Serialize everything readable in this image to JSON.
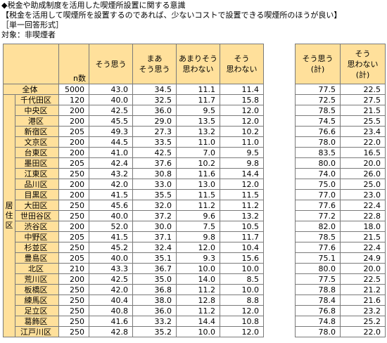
{
  "titles": {
    "line1": "◆税金や助成制度を活用した喫煙所設置に関する意識",
    "line2": "【税金を活用して喫煙所を設置するのであれば、少ないコストで設置できる喫煙所のほうが良い】",
    "line3": "［単一回答形式］",
    "line4": "対象：非喫煙者"
  },
  "chart_data": {
    "type": "table",
    "headers": {
      "n": "n数",
      "c1": "そう思う",
      "c2": "まあ\nそう思う",
      "c3": "あまりそう\n思わない",
      "c4": "そう\n思わない",
      "t1": "そう思う\n(計)",
      "t2": "そう\n思わない\n(計)"
    },
    "side_label": "居住区",
    "total": {
      "label": "全体",
      "n": "5000",
      "v": [
        "43.0",
        "34.5",
        "11.1",
        "11.4"
      ],
      "t": [
        "77.5",
        "22.5"
      ]
    },
    "rows": [
      {
        "label": "千代田区",
        "n": "120",
        "v": [
          "40.0",
          "32.5",
          "11.7",
          "15.8"
        ],
        "t": [
          "72.5",
          "27.5"
        ]
      },
      {
        "label": "中央区",
        "n": "200",
        "v": [
          "42.5",
          "36.0",
          "9.5",
          "12.0"
        ],
        "t": [
          "78.5",
          "21.5"
        ]
      },
      {
        "label": "港区",
        "n": "200",
        "v": [
          "45.5",
          "29.0",
          "13.5",
          "12.0"
        ],
        "t": [
          "74.5",
          "25.5"
        ]
      },
      {
        "label": "新宿区",
        "n": "205",
        "v": [
          "49.3",
          "27.3",
          "13.2",
          "10.2"
        ],
        "t": [
          "76.6",
          "23.4"
        ]
      },
      {
        "label": "文京区",
        "n": "200",
        "v": [
          "44.5",
          "33.5",
          "11.0",
          "11.0"
        ],
        "t": [
          "78.0",
          "22.0"
        ]
      },
      {
        "label": "台東区",
        "n": "200",
        "v": [
          "41.0",
          "42.5",
          "7.0",
          "9.5"
        ],
        "t": [
          "83.5",
          "16.5"
        ]
      },
      {
        "label": "墨田区",
        "n": "205",
        "v": [
          "42.4",
          "37.6",
          "10.2",
          "9.8"
        ],
        "t": [
          "80.0",
          "20.0"
        ]
      },
      {
        "label": "江東区",
        "n": "250",
        "v": [
          "43.2",
          "30.8",
          "11.6",
          "14.4"
        ],
        "t": [
          "74.0",
          "26.0"
        ]
      },
      {
        "label": "品川区",
        "n": "200",
        "v": [
          "42.0",
          "33.0",
          "13.0",
          "12.0"
        ],
        "t": [
          "75.0",
          "25.0"
        ]
      },
      {
        "label": "目黒区",
        "n": "200",
        "v": [
          "41.5",
          "35.5",
          "11.5",
          "11.5"
        ],
        "t": [
          "77.0",
          "23.0"
        ]
      },
      {
        "label": "大田区",
        "n": "250",
        "v": [
          "45.6",
          "32.0",
          "11.2",
          "11.2"
        ],
        "t": [
          "77.6",
          "22.4"
        ]
      },
      {
        "label": "世田谷区",
        "n": "250",
        "v": [
          "40.0",
          "37.2",
          "9.6",
          "13.2"
        ],
        "t": [
          "77.2",
          "22.8"
        ]
      },
      {
        "label": "渋谷区",
        "n": "200",
        "v": [
          "52.0",
          "30.0",
          "7.5",
          "10.5"
        ],
        "t": [
          "82.0",
          "18.0"
        ]
      },
      {
        "label": "中野区",
        "n": "205",
        "v": [
          "41.5",
          "37.1",
          "9.8",
          "11.7"
        ],
        "t": [
          "78.5",
          "21.5"
        ]
      },
      {
        "label": "杉並区",
        "n": "250",
        "v": [
          "45.2",
          "32.4",
          "12.0",
          "10.4"
        ],
        "t": [
          "77.6",
          "22.4"
        ]
      },
      {
        "label": "豊島区",
        "n": "205",
        "v": [
          "40.0",
          "35.1",
          "9.3",
          "15.6"
        ],
        "t": [
          "75.1",
          "24.9"
        ]
      },
      {
        "label": "北区",
        "n": "210",
        "v": [
          "43.3",
          "36.7",
          "10.0",
          "10.0"
        ],
        "t": [
          "80.0",
          "20.0"
        ]
      },
      {
        "label": "荒川区",
        "n": "200",
        "v": [
          "42.5",
          "35.0",
          "14.0",
          "8.5"
        ],
        "t": [
          "77.5",
          "22.5"
        ]
      },
      {
        "label": "板橋区",
        "n": "250",
        "v": [
          "42.0",
          "36.8",
          "11.2",
          "10.0"
        ],
        "t": [
          "78.8",
          "21.2"
        ]
      },
      {
        "label": "練馬区",
        "n": "250",
        "v": [
          "40.4",
          "38.0",
          "12.8",
          "8.8"
        ],
        "t": [
          "78.4",
          "21.6"
        ]
      },
      {
        "label": "足立区",
        "n": "250",
        "v": [
          "40.8",
          "36.0",
          "11.2",
          "12.0"
        ],
        "t": [
          "76.8",
          "23.2"
        ]
      },
      {
        "label": "葛飾区",
        "n": "250",
        "v": [
          "41.6",
          "33.2",
          "14.4",
          "10.8"
        ],
        "t": [
          "74.8",
          "25.2"
        ]
      },
      {
        "label": "江戸川区",
        "n": "250",
        "v": [
          "42.8",
          "35.2",
          "10.0",
          "12.0"
        ],
        "t": [
          "78.0",
          "22.0"
        ]
      }
    ]
  }
}
